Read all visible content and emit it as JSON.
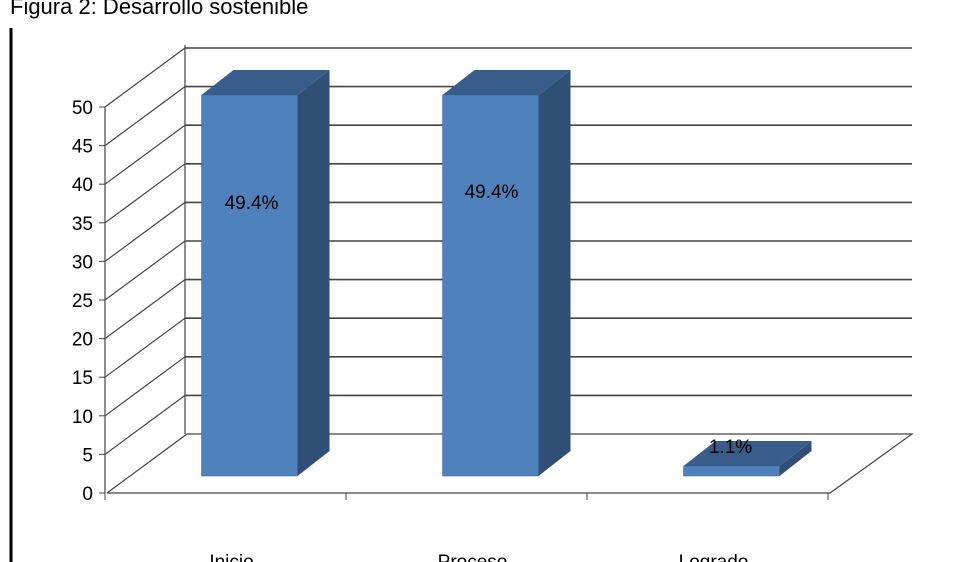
{
  "figure_title": "Figura 2: Desarrollo sostenible",
  "chart_data": {
    "type": "bar",
    "title": "",
    "xlabel": "",
    "ylabel": "",
    "categories": [
      "Inicio",
      "Proceso",
      "Logrado"
    ],
    "values": [
      49.4,
      49.4,
      1.1
    ],
    "data_labels": [
      "49.4%",
      "49.4%",
      "1.1%"
    ],
    "ylim": [
      0,
      50
    ],
    "yticks": [
      0,
      5,
      10,
      15,
      20,
      25,
      30,
      35,
      40,
      45,
      50
    ],
    "grid": true,
    "legend": "none",
    "style": "3d-column",
    "colors": {
      "bar_front": "#4f81bd",
      "bar_side": "#2f4f77",
      "bar_top": "#385d8a",
      "gridline": "#444444"
    }
  }
}
